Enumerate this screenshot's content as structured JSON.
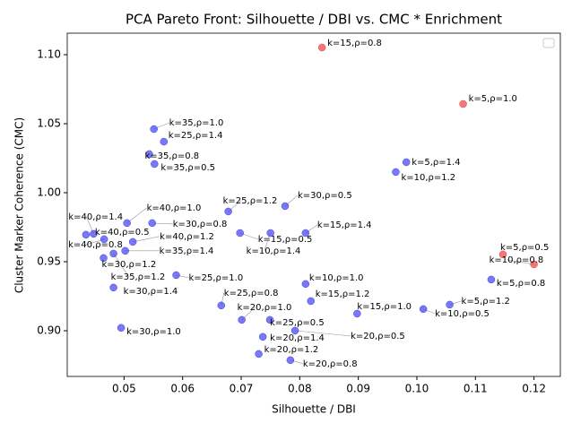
{
  "chart_data": {
    "type": "scatter",
    "title": "PCA Pareto Front: Silhouette / DBI vs. CMC * Enrichment",
    "x_label": "Silhouette / DBI",
    "y_label": "Cluster Marker Coherence (CMC)",
    "xlim": [
      0.0403,
      0.1245
    ],
    "ylim": [
      0.8669,
      1.1156
    ],
    "xticks": [
      0.05,
      0.06,
      0.07,
      0.08,
      0.09,
      {
        "value": 0.1,
        "label": "0.10"
      },
      0.11,
      0.12
    ],
    "yticks": [
      {
        "value": 0.9,
        "label": "0.90"
      },
      0.95,
      {
        "value": 1.0,
        "label": "1.00"
      },
      1.05,
      {
        "value": 1.1,
        "label": "1.10"
      }
    ],
    "series": [
      {
        "color": "#4040ee",
        "x": [
          0.0551,
          0.0568,
          0.0543,
          0.0552,
          0.0982,
          0.0964,
          0.0775,
          0.0678,
          0.0505,
          0.0548,
          0.0448,
          0.0435,
          0.0466,
          0.0515,
          0.0502,
          0.0482,
          0.0465,
          0.0698,
          0.075,
          0.081,
          0.0589,
          0.0482,
          0.081,
          0.0819,
          0.0666,
          0.0701,
          0.0749,
          0.0898,
          0.1011,
          0.1056,
          0.1127,
          0.0495,
          0.0792,
          0.0737,
          0.073,
          0.0784
        ],
        "values": [
          1.0461,
          1.037,
          1.028,
          1.0208,
          1.0221,
          1.015,
          0.9903,
          0.9864,
          0.978,
          0.978,
          0.9702,
          0.9696,
          0.9663,
          0.9644,
          0.9579,
          0.9559,
          0.9527,
          0.9708,
          0.9708,
          0.9708,
          0.9403,
          0.9313,
          0.9339,
          0.9215,
          0.9183,
          0.9079,
          0.9079,
          0.9124,
          0.9157,
          0.9189,
          0.9371,
          0.9021,
          0.9001,
          0.8956,
          0.8832,
          0.8787
        ],
        "labels": [
          "k=35,ρ=1.0",
          "k=25,ρ=1.4",
          "k=35,ρ=0.8",
          "k=35,ρ=0.5",
          "k=5,ρ=1.4",
          "k=10,ρ=1.2",
          "k=30,ρ=0.5",
          "k=25,ρ=1.2",
          "k=40,ρ=1.0",
          "k=30,ρ=0.8",
          "k=40,ρ=1.4",
          "k=40,ρ=0.5",
          "k=40,ρ=0.8",
          "k=40,ρ=1.2",
          "k=35,ρ=1.4",
          "k=35,ρ=1.2",
          "k=30,ρ=1.2",
          "k=15,ρ=0.5",
          "k=10,ρ=1.4",
          "k=15,ρ=1.4",
          "k=25,ρ=1.0",
          "k=30,ρ=1.4",
          "k=10,ρ=1.0",
          "k=15,ρ=1.2",
          "k=25,ρ=0.8",
          "k=20,ρ=1.0",
          "k=25,ρ=0.5",
          "k=15,ρ=1.0",
          "k=10,ρ=0.5",
          "k=5,ρ=1.2",
          "k=5,ρ=0.8",
          "k=30,ρ=1.0",
          "k=20,ρ=0.5",
          "k=20,ρ=1.4",
          "k=20,ρ=1.2",
          "k=20,ρ=0.8"
        ]
      },
      {
        "color": "#ee4040",
        "x": [
          0.0838,
          0.1079,
          0.1147,
          0.12
        ],
        "values": [
          1.1052,
          1.0643,
          0.9553,
          0.9481
        ],
        "labels": [
          "k=15,ρ=0.8",
          "k=5,ρ=1.0",
          "k=5,ρ=0.5",
          "k=10,ρ=0.8"
        ]
      }
    ]
  }
}
